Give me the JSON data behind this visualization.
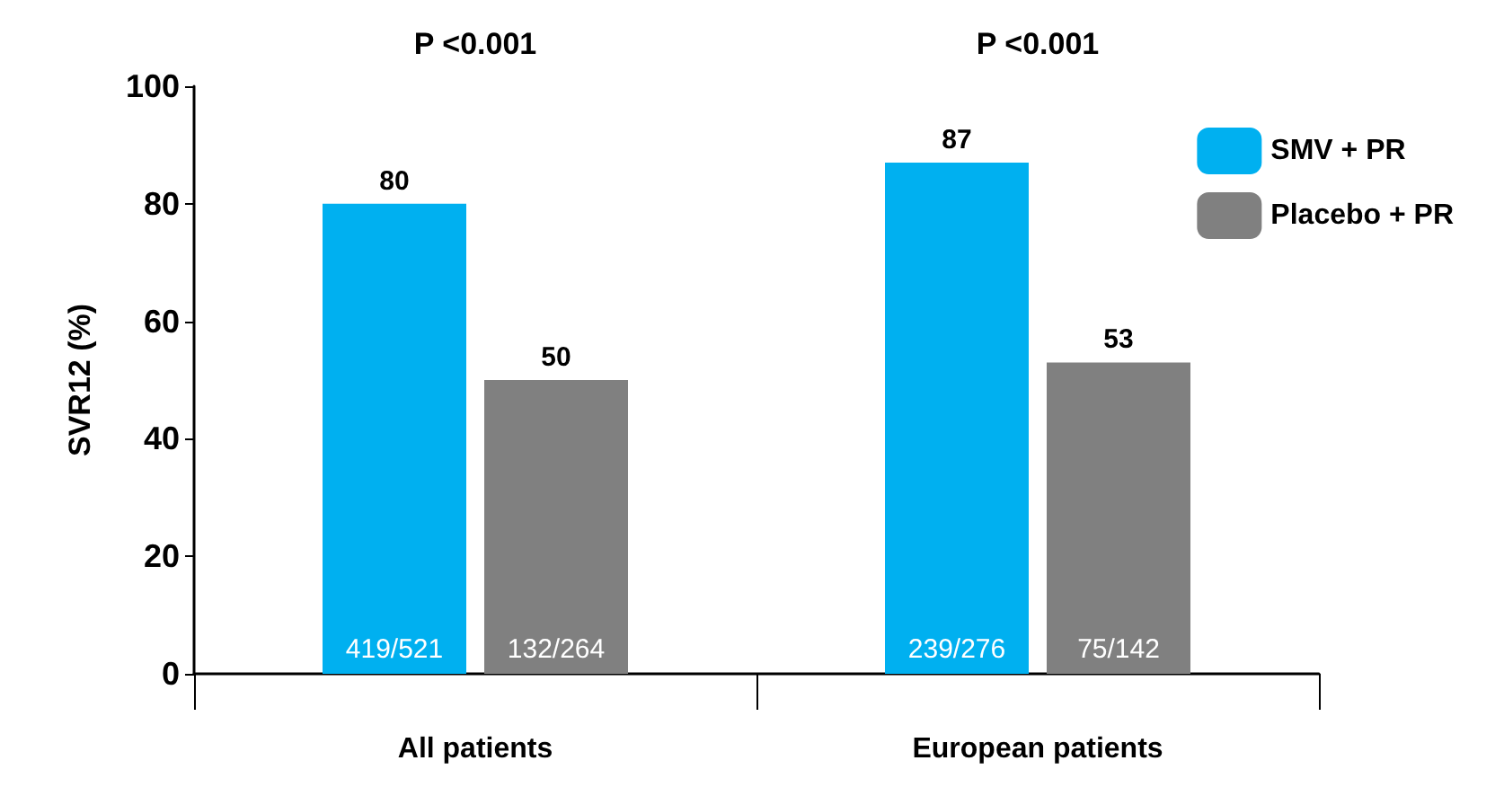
{
  "chart_data": {
    "type": "bar",
    "ylabel": "SVR12 (%)",
    "categories": [
      "All patients",
      "European patients"
    ],
    "series": [
      {
        "name": "SMV + PR",
        "color": "#00b0f0",
        "values": [
          80,
          87
        ]
      },
      {
        "name": "Placebo + PR",
        "color": "#808080",
        "values": [
          50,
          53
        ]
      }
    ],
    "ylim": [
      0,
      100
    ],
    "yticks": [
      0,
      20,
      40,
      60,
      80,
      100
    ],
    "grid": false,
    "legend": "top right",
    "data_labels": true,
    "annotations": [
      "P <0.001",
      "P <0.001",
      {
        "text": "419/521",
        "x": "All patients",
        "y": 0
      },
      {
        "text": "132/264",
        "x": "All patients",
        "y": 0
      },
      {
        "text": "239/276",
        "x": "European patients",
        "y": 0
      },
      {
        "text": "75/142",
        "x": "European patients",
        "y": 0
      }
    ]
  }
}
